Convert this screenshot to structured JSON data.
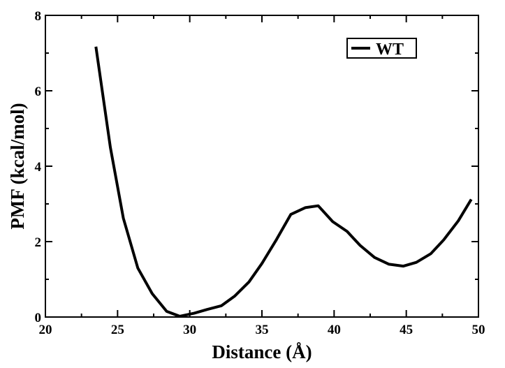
{
  "chart_data": {
    "type": "line",
    "title": "",
    "xlabel": "Distance (Å)",
    "ylabel": "PMF (kcal/mol)",
    "xlim": [
      20,
      50
    ],
    "ylim": [
      0,
      8
    ],
    "xticks": [
      "20",
      "25",
      "30",
      "35",
      "40",
      "45",
      "50"
    ],
    "yticks": [
      "0",
      "2",
      "4",
      "6",
      "8"
    ],
    "grid": false,
    "legend_position": "top-right",
    "series": [
      {
        "name": "WT",
        "color": "#000000",
        "x": [
          23.5,
          24.5,
          25.4,
          26.4,
          27.4,
          28.4,
          29.3,
          30.3,
          31.2,
          32.2,
          33.1,
          34.1,
          35.0,
          36.0,
          37.0,
          38.0,
          38.9,
          39.9,
          40.9,
          41.8,
          42.8,
          43.8,
          44.8,
          45.7,
          46.7,
          47.6,
          48.6,
          49.5
        ],
        "y": [
          7.17,
          4.5,
          2.62,
          1.3,
          0.62,
          0.15,
          0.02,
          0.1,
          0.2,
          0.3,
          0.55,
          0.93,
          1.42,
          2.05,
          2.72,
          2.9,
          2.95,
          2.53,
          2.27,
          1.9,
          1.58,
          1.4,
          1.35,
          1.45,
          1.68,
          2.05,
          2.55,
          3.12
        ]
      }
    ]
  }
}
